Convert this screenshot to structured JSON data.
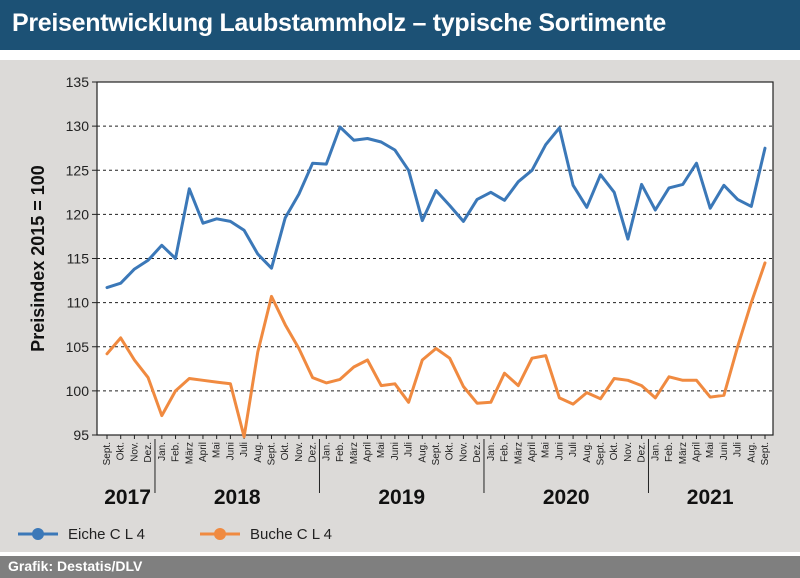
{
  "title": "Preisentwicklung Laubstammholz – typische Sortimente",
  "source": "Grafik: Destatis/DLV",
  "colors": {
    "eiche": "#3b78b8",
    "buche": "#f08a40",
    "header": "#1c5175"
  },
  "chart_data": {
    "type": "line",
    "ylabel": "Preisindex 2015 = 100",
    "ylim": [
      95,
      135
    ],
    "yticks": [
      95,
      100,
      105,
      110,
      115,
      120,
      125,
      130,
      135
    ],
    "grid": true,
    "legend": "bottom-left",
    "x": [
      "Sept.",
      "Okt.",
      "Nov.",
      "Dez.",
      "Jan.",
      "Feb.",
      "März",
      "April",
      "Mai",
      "Juni",
      "Juli",
      "Aug.",
      "Sept.",
      "Okt.",
      "Nov.",
      "Dez.",
      "Jan.",
      "Feb.",
      "März",
      "April",
      "Mai",
      "Juni",
      "Juli",
      "Aug.",
      "Sept.",
      "Okt.",
      "Nov.",
      "Dez.",
      "Jan.",
      "Feb.",
      "März",
      "April",
      "Mai",
      "Juni",
      "Juli",
      "Aug.",
      "Sept.",
      "Okt.",
      "Nov.",
      "Dez.",
      "Jan.",
      "Feb.",
      "März",
      "April",
      "Mai",
      "Juni",
      "Juli",
      "Aug.",
      "Sept."
    ],
    "years": [
      {
        "label": "2017",
        "start": 0,
        "end": 3
      },
      {
        "label": "2018",
        "start": 4,
        "end": 15
      },
      {
        "label": "2019",
        "start": 16,
        "end": 27
      },
      {
        "label": "2020",
        "start": 28,
        "end": 39
      },
      {
        "label": "2021",
        "start": 40,
        "end": 48
      }
    ],
    "series": [
      {
        "name": "Eiche C L 4",
        "color": "#3b78b8",
        "values": [
          111.7,
          112.2,
          113.8,
          114.8,
          116.5,
          115.0,
          122.9,
          119.0,
          119.5,
          119.2,
          118.2,
          115.5,
          113.9,
          119.6,
          122.3,
          125.8,
          125.7,
          129.9,
          128.4,
          128.6,
          128.2,
          127.3,
          125.0,
          119.3,
          122.7,
          121.0,
          119.2,
          121.7,
          122.5,
          121.6,
          123.7,
          125.0,
          127.9,
          129.8,
          123.3,
          120.8,
          124.5,
          122.5,
          117.2,
          123.4,
          120.5,
          123.0,
          123.4,
          125.8,
          120.7,
          123.3,
          121.7,
          120.9,
          127.5
        ]
      },
      {
        "name": "Buche C L 4",
        "color": "#f08a40",
        "values": [
          104.2,
          106.0,
          103.5,
          101.5,
          97.2,
          100.0,
          101.4,
          101.2,
          101.0,
          100.8,
          94.8,
          104.4,
          110.7,
          107.5,
          104.8,
          101.5,
          100.9,
          101.3,
          102.7,
          103.5,
          100.6,
          100.8,
          98.7,
          103.5,
          104.8,
          103.7,
          100.5,
          98.6,
          98.7,
          102.0,
          100.6,
          103.7,
          104.0,
          99.2,
          98.5,
          99.8,
          99.1,
          101.4,
          101.2,
          100.6,
          99.2,
          101.6,
          101.2,
          101.2,
          99.3,
          99.5,
          105.0,
          110.0,
          114.5
        ]
      }
    ]
  }
}
